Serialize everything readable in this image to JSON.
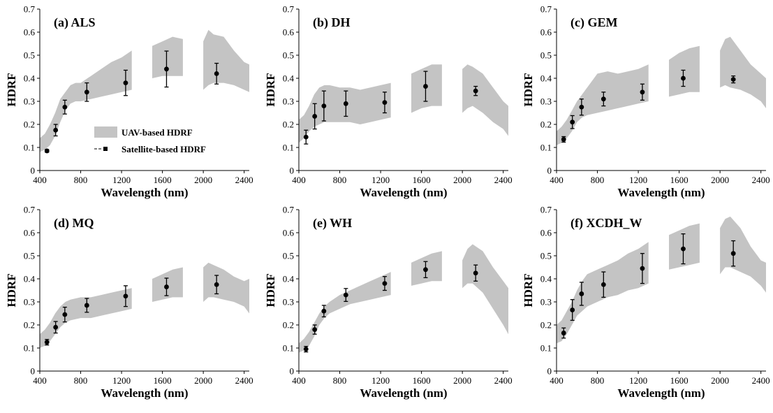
{
  "chart_data": [
    {
      "type": "line",
      "title": "(a) ALS",
      "xlabel": "Wavelength (nm)",
      "ylabel": "HDRF",
      "xlim": [
        400,
        2450
      ],
      "ylim": [
        0,
        0.7
      ],
      "xticks": [
        400,
        800,
        1200,
        1600,
        2000,
        2400
      ],
      "yticks": [
        0,
        0.1,
        0.2,
        0.3,
        0.4,
        0.5,
        0.6,
        0.7
      ],
      "uav_band": {
        "name": "UAV-based HDRF",
        "segments": [
          {
            "x": [
              400,
              450,
              500,
              550,
              600,
              650,
              700,
              750,
              800,
              900,
              1000,
              1100,
              1200,
              1300
            ],
            "lower": [
              0.08,
              0.09,
              0.11,
              0.15,
              0.21,
              0.26,
              0.29,
              0.3,
              0.3,
              0.31,
              0.32,
              0.33,
              0.34,
              0.35
            ],
            "upper": [
              0.14,
              0.16,
              0.2,
              0.25,
              0.31,
              0.34,
              0.37,
              0.38,
              0.38,
              0.41,
              0.44,
              0.47,
              0.49,
              0.52
            ]
          },
          {
            "x": [
              1500,
              1600,
              1700,
              1800
            ],
            "lower": [
              0.4,
              0.41,
              0.41,
              0.41
            ],
            "upper": [
              0.54,
              0.56,
              0.58,
              0.57
            ]
          },
          {
            "x": [
              2000,
              2050,
              2100,
              2200,
              2300,
              2400,
              2450
            ],
            "lower": [
              0.35,
              0.37,
              0.38,
              0.38,
              0.37,
              0.35,
              0.34
            ],
            "upper": [
              0.56,
              0.61,
              0.59,
              0.58,
              0.52,
              0.47,
              0.46
            ]
          }
        ]
      },
      "satellite": {
        "name": "Satellite-based HDRF",
        "x": [
          470,
          555,
          645,
          860,
          1240,
          1640,
          2130
        ],
        "y": [
          0.085,
          0.175,
          0.275,
          0.34,
          0.38,
          0.44,
          0.42
        ],
        "err": [
          0.006,
          0.025,
          0.03,
          0.04,
          0.055,
          0.078,
          0.045
        ]
      }
    },
    {
      "type": "line",
      "title": "(b) DH",
      "xlabel": "Wavelength (nm)",
      "ylabel": "HDRF",
      "xlim": [
        400,
        2450
      ],
      "ylim": [
        0,
        0.7
      ],
      "xticks": [
        400,
        800,
        1200,
        1600,
        2000,
        2400
      ],
      "yticks": [
        0,
        0.1,
        0.2,
        0.3,
        0.4,
        0.5,
        0.6,
        0.7
      ],
      "uav_band": {
        "name": "UAV-based HDRF",
        "segments": [
          {
            "x": [
              400,
              450,
              500,
              550,
              600,
              650,
              700,
              800,
              900,
              1000,
              1100,
              1200,
              1300
            ],
            "lower": [
              0.12,
              0.14,
              0.17,
              0.19,
              0.2,
              0.21,
              0.21,
              0.21,
              0.21,
              0.2,
              0.21,
              0.22,
              0.23
            ],
            "upper": [
              0.22,
              0.24,
              0.28,
              0.33,
              0.36,
              0.37,
              0.37,
              0.36,
              0.36,
              0.35,
              0.36,
              0.37,
              0.38
            ]
          },
          {
            "x": [
              1500,
              1600,
              1700,
              1800
            ],
            "lower": [
              0.25,
              0.27,
              0.28,
              0.28
            ],
            "upper": [
              0.42,
              0.44,
              0.46,
              0.46
            ]
          },
          {
            "x": [
              2000,
              2050,
              2100,
              2200,
              2300,
              2400,
              2450
            ],
            "lower": [
              0.25,
              0.27,
              0.28,
              0.25,
              0.21,
              0.18,
              0.15
            ],
            "upper": [
              0.44,
              0.46,
              0.45,
              0.42,
              0.36,
              0.3,
              0.28
            ]
          }
        ]
      },
      "satellite": {
        "name": "Satellite-based HDRF",
        "x": [
          470,
          555,
          645,
          860,
          1240,
          1640,
          2130
        ],
        "y": [
          0.145,
          0.235,
          0.28,
          0.29,
          0.295,
          0.365,
          0.345
        ],
        "err": [
          0.03,
          0.055,
          0.065,
          0.055,
          0.045,
          0.065,
          0.02
        ]
      }
    },
    {
      "type": "line",
      "title": "(c) GEM",
      "xlabel": "Wavelength (nm)",
      "ylabel": "HDRF",
      "xlim": [
        400,
        2450
      ],
      "ylim": [
        0,
        0.7
      ],
      "xticks": [
        400,
        800,
        1200,
        1600,
        2000,
        2400
      ],
      "yticks": [
        0,
        0.1,
        0.2,
        0.3,
        0.4,
        0.5,
        0.6,
        0.7
      ],
      "uav_band": {
        "name": "UAV-based HDRF",
        "segments": [
          {
            "x": [
              400,
              450,
              500,
              550,
              600,
              650,
              700,
              800,
              900,
              1000,
              1100,
              1200,
              1300
            ],
            "lower": [
              0.11,
              0.12,
              0.14,
              0.17,
              0.21,
              0.23,
              0.24,
              0.25,
              0.26,
              0.27,
              0.28,
              0.29,
              0.3
            ],
            "upper": [
              0.17,
              0.19,
              0.22,
              0.26,
              0.3,
              0.33,
              0.36,
              0.42,
              0.43,
              0.42,
              0.43,
              0.44,
              0.46
            ]
          },
          {
            "x": [
              1500,
              1600,
              1700,
              1800
            ],
            "lower": [
              0.32,
              0.33,
              0.34,
              0.34
            ],
            "upper": [
              0.48,
              0.51,
              0.53,
              0.54
            ]
          },
          {
            "x": [
              2000,
              2050,
              2100,
              2200,
              2300,
              2400,
              2450
            ],
            "lower": [
              0.36,
              0.37,
              0.36,
              0.35,
              0.33,
              0.3,
              0.27
            ],
            "upper": [
              0.52,
              0.57,
              0.58,
              0.52,
              0.46,
              0.42,
              0.4
            ]
          }
        ]
      },
      "satellite": {
        "name": "Satellite-based HDRF",
        "x": [
          470,
          555,
          645,
          860,
          1240,
          1640,
          2130
        ],
        "y": [
          0.135,
          0.21,
          0.275,
          0.31,
          0.34,
          0.4,
          0.395
        ],
        "err": [
          0.012,
          0.028,
          0.035,
          0.03,
          0.035,
          0.035,
          0.015
        ]
      }
    },
    {
      "type": "line",
      "title": "(d) MQ",
      "xlabel": "Wavelength (nm)",
      "ylabel": "HDRF",
      "xlim": [
        400,
        2450
      ],
      "ylim": [
        0,
        0.7
      ],
      "xticks": [
        400,
        800,
        1200,
        1600,
        2000,
        2400
      ],
      "yticks": [
        0,
        0.1,
        0.2,
        0.3,
        0.4,
        0.5,
        0.6,
        0.7
      ],
      "uav_band": {
        "name": "UAV-based HDRF",
        "segments": [
          {
            "x": [
              400,
              450,
              500,
              550,
              600,
              650,
              700,
              800,
              900,
              1000,
              1100,
              1200,
              1300
            ],
            "lower": [
              0.1,
              0.11,
              0.13,
              0.16,
              0.19,
              0.21,
              0.22,
              0.23,
              0.23,
              0.24,
              0.25,
              0.26,
              0.27
            ],
            "upper": [
              0.16,
              0.18,
              0.21,
              0.25,
              0.28,
              0.3,
              0.31,
              0.32,
              0.32,
              0.33,
              0.34,
              0.35,
              0.36
            ]
          },
          {
            "x": [
              1500,
              1600,
              1700,
              1800
            ],
            "lower": [
              0.3,
              0.31,
              0.32,
              0.32
            ],
            "upper": [
              0.4,
              0.42,
              0.44,
              0.45
            ]
          },
          {
            "x": [
              2000,
              2050,
              2100,
              2200,
              2300,
              2400,
              2450
            ],
            "lower": [
              0.3,
              0.32,
              0.32,
              0.31,
              0.3,
              0.28,
              0.25
            ],
            "upper": [
              0.45,
              0.47,
              0.46,
              0.44,
              0.41,
              0.39,
              0.4
            ]
          }
        ]
      },
      "satellite": {
        "name": "Satellite-based HDRF",
        "x": [
          470,
          555,
          645,
          860,
          1240,
          1640,
          2130
        ],
        "y": [
          0.125,
          0.19,
          0.245,
          0.285,
          0.325,
          0.365,
          0.375
        ],
        "err": [
          0.012,
          0.025,
          0.032,
          0.03,
          0.045,
          0.038,
          0.04
        ]
      }
    },
    {
      "type": "line",
      "title": "(e) WH",
      "xlabel": "Wavelength (nm)",
      "ylabel": "HDRF",
      "xlim": [
        400,
        2450
      ],
      "ylim": [
        0,
        0.7
      ],
      "xticks": [
        400,
        800,
        1200,
        1600,
        2000,
        2400
      ],
      "yticks": [
        0,
        0.1,
        0.2,
        0.3,
        0.4,
        0.5,
        0.6,
        0.7
      ],
      "uav_band": {
        "name": "UAV-based HDRF",
        "segments": [
          {
            "x": [
              400,
              450,
              500,
              550,
              600,
              650,
              700,
              800,
              900,
              1000,
              1100,
              1200,
              1300
            ],
            "lower": [
              0.08,
              0.09,
              0.11,
              0.15,
              0.2,
              0.23,
              0.25,
              0.27,
              0.29,
              0.3,
              0.31,
              0.32,
              0.33
            ],
            "upper": [
              0.12,
              0.14,
              0.17,
              0.21,
              0.25,
              0.28,
              0.3,
              0.33,
              0.35,
              0.37,
              0.39,
              0.41,
              0.43
            ]
          },
          {
            "x": [
              1500,
              1600,
              1700,
              1800
            ],
            "lower": [
              0.37,
              0.38,
              0.39,
              0.39
            ],
            "upper": [
              0.47,
              0.49,
              0.51,
              0.52
            ]
          },
          {
            "x": [
              2000,
              2050,
              2100,
              2200,
              2300,
              2400,
              2450
            ],
            "lower": [
              0.36,
              0.38,
              0.38,
              0.34,
              0.27,
              0.2,
              0.16
            ],
            "upper": [
              0.48,
              0.53,
              0.55,
              0.52,
              0.45,
              0.39,
              0.36
            ]
          }
        ]
      },
      "satellite": {
        "name": "Satellite-based HDRF",
        "x": [
          470,
          555,
          645,
          860,
          1240,
          1640,
          2130
        ],
        "y": [
          0.095,
          0.18,
          0.26,
          0.33,
          0.38,
          0.44,
          0.425
        ],
        "err": [
          0.012,
          0.02,
          0.025,
          0.028,
          0.03,
          0.035,
          0.035
        ]
      }
    },
    {
      "type": "line",
      "title": "(f) XCDH_W",
      "xlabel": "Wavelength (nm)",
      "ylabel": "HDRF",
      "xlim": [
        400,
        2450
      ],
      "ylim": [
        0,
        0.7
      ],
      "xticks": [
        400,
        800,
        1200,
        1600,
        2000,
        2400
      ],
      "yticks": [
        0,
        0.1,
        0.2,
        0.3,
        0.4,
        0.5,
        0.6,
        0.7
      ],
      "uav_band": {
        "name": "UAV-based HDRF",
        "segments": [
          {
            "x": [
              400,
              450,
              500,
              550,
              600,
              650,
              700,
              800,
              900,
              1000,
              1100,
              1200,
              1300
            ],
            "lower": [
              0.12,
              0.13,
              0.16,
              0.2,
              0.24,
              0.26,
              0.28,
              0.3,
              0.32,
              0.33,
              0.35,
              0.36,
              0.38
            ],
            "upper": [
              0.2,
              0.22,
              0.26,
              0.3,
              0.35,
              0.39,
              0.42,
              0.44,
              0.46,
              0.48,
              0.51,
              0.53,
              0.56
            ]
          },
          {
            "x": [
              1500,
              1600,
              1700,
              1800
            ],
            "lower": [
              0.44,
              0.45,
              0.46,
              0.47
            ],
            "upper": [
              0.59,
              0.61,
              0.63,
              0.64
            ]
          },
          {
            "x": [
              2000,
              2050,
              2100,
              2200,
              2300,
              2400,
              2450
            ],
            "lower": [
              0.42,
              0.45,
              0.45,
              0.43,
              0.41,
              0.37,
              0.34
            ],
            "upper": [
              0.62,
              0.66,
              0.67,
              0.62,
              0.54,
              0.48,
              0.47
            ]
          }
        ]
      },
      "satellite": {
        "name": "Satellite-based HDRF",
        "x": [
          470,
          555,
          645,
          860,
          1240,
          1640,
          2130
        ],
        "y": [
          0.165,
          0.265,
          0.335,
          0.375,
          0.445,
          0.53,
          0.51
        ],
        "err": [
          0.022,
          0.045,
          0.05,
          0.055,
          0.065,
          0.065,
          0.055
        ]
      }
    }
  ],
  "legend": {
    "uav_label": "UAV-based HDRF",
    "sat_label": "Satellite-based HDRF"
  },
  "colors": {
    "band": "#c4c4c4",
    "marker": "#000000"
  }
}
